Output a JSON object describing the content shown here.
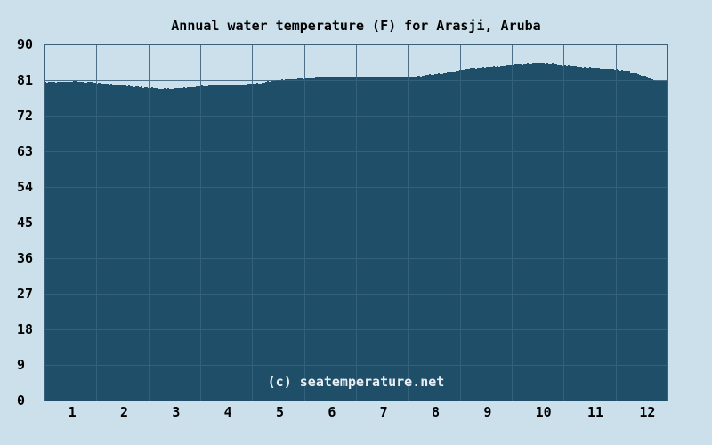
{
  "chart_data": {
    "type": "area",
    "title": "Annual water temperature (F) for Arasji, Aruba",
    "watermark": "(c) seatemperature.net",
    "x_tick_labels": [
      "1",
      "2",
      "3",
      "4",
      "5",
      "6",
      "7",
      "8",
      "9",
      "10",
      "11",
      "12"
    ],
    "y_tick_labels": [
      "90",
      "81",
      "72",
      "63",
      "54",
      "45",
      "36",
      "27",
      "18",
      "9",
      "0"
    ],
    "ylim": [
      0,
      90
    ],
    "xlim": [
      0,
      12
    ],
    "grid": true,
    "legend": false,
    "series": [
      {
        "name": "water temperature (F)",
        "monthly_mean_F": [
          80.5,
          79.5,
          79.1,
          79.7,
          80.8,
          81.7,
          81.8,
          82.4,
          84.3,
          85.0,
          84.1,
          82.0
        ],
        "profile_month_temp": [
          [
            0.0,
            80.5
          ],
          [
            0.34,
            80.5
          ],
          [
            0.6,
            80.6
          ],
          [
            0.86,
            80.4
          ],
          [
            1.03,
            80.2
          ],
          [
            1.29,
            79.9
          ],
          [
            1.54,
            79.6
          ],
          [
            1.8,
            79.3
          ],
          [
            2.06,
            79.0
          ],
          [
            2.23,
            78.9
          ],
          [
            2.49,
            78.85
          ],
          [
            2.66,
            79.1
          ],
          [
            2.83,
            79.35
          ],
          [
            3.05,
            79.5
          ],
          [
            3.34,
            79.7
          ],
          [
            3.69,
            79.8
          ],
          [
            4.03,
            80.1
          ],
          [
            4.29,
            80.6
          ],
          [
            4.54,
            81.1
          ],
          [
            4.75,
            81.35
          ],
          [
            4.97,
            81.4
          ],
          [
            5.14,
            81.5
          ],
          [
            5.31,
            81.9
          ],
          [
            5.45,
            81.8
          ],
          [
            5.62,
            81.75
          ],
          [
            5.83,
            81.6
          ],
          [
            6.0,
            81.7
          ],
          [
            6.26,
            81.7
          ],
          [
            6.48,
            81.8
          ],
          [
            6.63,
            81.9
          ],
          [
            6.81,
            81.75
          ],
          [
            7.0,
            81.9
          ],
          [
            7.23,
            82.1
          ],
          [
            7.46,
            82.5
          ],
          [
            7.71,
            82.9
          ],
          [
            8.01,
            83.4
          ],
          [
            8.23,
            84.0
          ],
          [
            8.49,
            84.3
          ],
          [
            8.74,
            84.6
          ],
          [
            9.0,
            84.9
          ],
          [
            9.26,
            85.1
          ],
          [
            9.46,
            85.3
          ],
          [
            9.69,
            85.1
          ],
          [
            9.94,
            84.9
          ],
          [
            10.2,
            84.5
          ],
          [
            10.46,
            84.3
          ],
          [
            10.71,
            84.0
          ],
          [
            10.97,
            83.6
          ],
          [
            11.14,
            83.4
          ],
          [
            11.31,
            82.9
          ],
          [
            11.49,
            82.3
          ],
          [
            11.62,
            81.6
          ],
          [
            11.74,
            81.0
          ],
          [
            11.86,
            80.8
          ],
          [
            12.0,
            80.75
          ]
        ]
      }
    ],
    "colors": {
      "background": "#cce0ec",
      "area_fill": "#1f4e68",
      "grid_on_background": "#4d7088",
      "grid_on_fill": "#33607b",
      "plot_border": "#3c6078",
      "text": "#000000",
      "watermark_text": "#e9eef3"
    }
  }
}
